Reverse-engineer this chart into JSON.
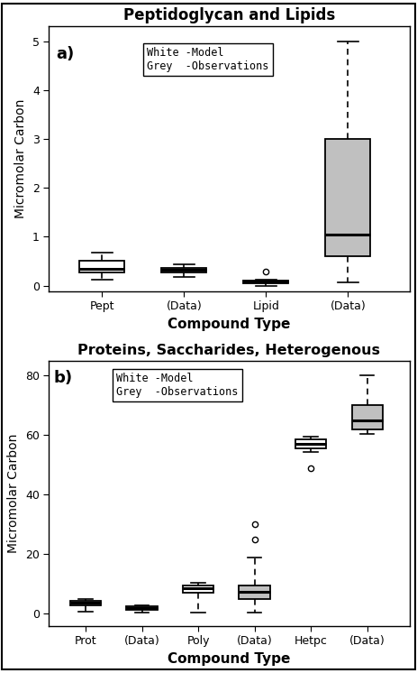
{
  "panel_a": {
    "title": "Peptidoglycan and Lipids",
    "ylabel": "Micromolar Carbon",
    "xlabel": "Compound Type",
    "ylim": [
      -0.12,
      5.3
    ],
    "yticks": [
      0,
      1,
      2,
      3,
      4,
      5
    ],
    "label": "a)",
    "legend_text": "White -Model\nGrey  -Observations",
    "boxes": [
      {
        "label": "Pept",
        "color": "white",
        "whisker_low": 0.13,
        "q1": 0.27,
        "median": 0.34,
        "q3": 0.5,
        "whisker_high": 0.67,
        "outliers": []
      },
      {
        "label": "(Data)",
        "color": "#c0c0c0",
        "whisker_low": 0.18,
        "q1": 0.27,
        "median": 0.32,
        "q3": 0.37,
        "whisker_high": 0.43,
        "outliers": []
      },
      {
        "label": "Lipid",
        "color": "white",
        "whisker_low": 0.0,
        "q1": 0.05,
        "median": 0.08,
        "q3": 0.1,
        "whisker_high": 0.12,
        "outliers": [
          0.28
        ]
      },
      {
        "label": "(Data)",
        "color": "#c0c0c0",
        "whisker_low": 0.07,
        "q1": 0.6,
        "median": 1.05,
        "q3": 3.0,
        "whisker_high": 5.0,
        "outliers": []
      }
    ]
  },
  "panel_b": {
    "title": "Proteins, Saccharides, Heterogenous",
    "ylabel": "Micromolar Carbon",
    "xlabel": "Compound Type",
    "ylim": [
      -4,
      85
    ],
    "yticks": [
      0,
      20,
      40,
      60,
      80
    ],
    "label": "b)",
    "legend_text": "White -Model\nGrey  -Observations",
    "boxes": [
      {
        "label": "Prot",
        "color": "white",
        "whisker_low": 0.8,
        "q1": 3.0,
        "median": 3.8,
        "q3": 4.5,
        "whisker_high": 5.0,
        "outliers": []
      },
      {
        "label": "(Data)",
        "color": "#c0c0c0",
        "whisker_low": 0.5,
        "q1": 1.5,
        "median": 2.0,
        "q3": 2.5,
        "whisker_high": 3.0,
        "outliers": []
      },
      {
        "label": "Poly",
        "color": "white",
        "whisker_low": 0.5,
        "q1": 7.0,
        "median": 8.5,
        "q3": 9.5,
        "whisker_high": 10.5,
        "outliers": []
      },
      {
        "label": "(Data)",
        "color": "#c0c0c0",
        "whisker_low": 0.5,
        "q1": 5.0,
        "median": 7.5,
        "q3": 9.5,
        "whisker_high": 19.0,
        "outliers": [
          25.0,
          30.0
        ]
      },
      {
        "label": "Hetpc",
        "color": "white",
        "whisker_low": 54.5,
        "q1": 55.5,
        "median": 57.0,
        "q3": 58.5,
        "whisker_high": 59.5,
        "outliers": [
          49.0
        ]
      },
      {
        "label": "(Data)",
        "color": "#c0c0c0",
        "whisker_low": 60.5,
        "q1": 62.0,
        "median": 65.0,
        "q3": 70.0,
        "whisker_high": 80.0,
        "outliers": []
      }
    ]
  },
  "figure": {
    "border_color": "black",
    "border_linewidth": 1.5,
    "bg_color": "white"
  }
}
